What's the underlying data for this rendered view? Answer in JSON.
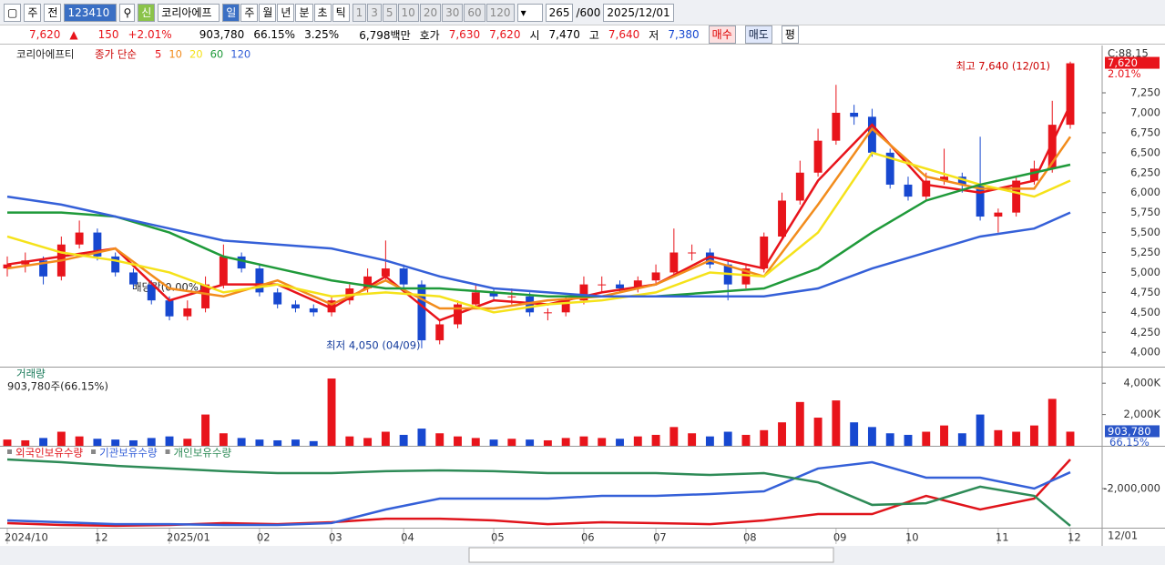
{
  "toolbar": {
    "period": "주",
    "prev": "전",
    "code": "123410",
    "new_badge": "신",
    "name": "코리아에프",
    "units": [
      "일",
      "주",
      "월",
      "년",
      "분",
      "초",
      "틱"
    ],
    "minutes": [
      "1",
      "3",
      "5",
      "10",
      "20",
      "30",
      "60",
      "120"
    ],
    "count": "265",
    "max": "/600",
    "date": "2025/12/01"
  },
  "quote": {
    "price": "7,620",
    "arrow": "▲",
    "change": "150",
    "rate": "+2.01%",
    "volume": "903,780",
    "vol_rate": "66.15%",
    "turnover": "3.25%",
    "amount": "6,798백만",
    "ask_label": "호가",
    "ask": "7,630",
    "bid": "7,620",
    "open_label": "시",
    "open": "7,470",
    "high_label": "고",
    "high": "7,640",
    "low_label": "저",
    "low": "7,380",
    "buy": "매수",
    "sell": "매도",
    "avg": "평"
  },
  "chart_data": [
    {
      "type": "candlestick",
      "title": "코리아에프티",
      "legend_prefix": "종가 단순",
      "categories": [
        "2024/10",
        null,
        null,
        null,
        null,
        "12",
        null,
        null,
        null,
        "2025/01",
        null,
        null,
        null,
        null,
        "02",
        null,
        null,
        null,
        "03",
        null,
        null,
        null,
        "04",
        null,
        null,
        null,
        null,
        "05",
        null,
        null,
        null,
        null,
        "06",
        null,
        null,
        null,
        "07",
        null,
        null,
        null,
        null,
        "08",
        null,
        null,
        null,
        null,
        "09",
        null,
        null,
        null,
        "10",
        null,
        null,
        null,
        null,
        "11",
        null,
        null,
        null,
        "12"
      ],
      "open": [
        5050,
        5100,
        5150,
        4950,
        5350,
        5500,
        5200,
        5000,
        4850,
        4650,
        4450,
        4550,
        4850,
        5200,
        5050,
        4750,
        4600,
        4550,
        4500,
        4650,
        4800,
        4950,
        5050,
        4850,
        4150,
        4350,
        4600,
        4750,
        4700,
        4700,
        4500,
        4500,
        4650,
        4850,
        4850,
        4800,
        4900,
        5000,
        5250,
        5250,
        5100,
        4850,
        5050,
        5450,
        5900,
        6250,
        6650,
        7000,
        6950,
        6500,
        6100,
        5950,
        6150,
        6200,
        6100,
        5700,
        5750,
        6150,
        6300,
        6850
      ],
      "high": [
        5200,
        5250,
        5200,
        5450,
        5650,
        5550,
        5250,
        5050,
        4900,
        4700,
        4650,
        4950,
        5350,
        5250,
        5100,
        4800,
        4650,
        4600,
        4700,
        4850,
        5050,
        5400,
        5100,
        4900,
        4400,
        4650,
        4850,
        4800,
        4800,
        4750,
        4550,
        4700,
        4950,
        4950,
        4900,
        4950,
        5100,
        5550,
        5350,
        5300,
        5150,
        5100,
        5500,
        6000,
        6400,
        6800,
        7350,
        7100,
        7050,
        6550,
        6200,
        6250,
        6550,
        6250,
        6700,
        5800,
        6200,
        6400,
        7150,
        7640
      ],
      "low": [
        4950,
        5000,
        4850,
        4900,
        5300,
        5150,
        4950,
        4800,
        4600,
        4400,
        4400,
        4500,
        4800,
        5000,
        4700,
        4550,
        4500,
        4450,
        4450,
        4600,
        4750,
        4900,
        4750,
        4050,
        4100,
        4300,
        4550,
        4650,
        4600,
        4450,
        4400,
        4450,
        4600,
        4750,
        4750,
        4750,
        4850,
        4950,
        5150,
        5050,
        4650,
        4800,
        5000,
        5400,
        5850,
        6200,
        6600,
        6850,
        6450,
        6050,
        5900,
        5900,
        6100,
        6000,
        5650,
        5500,
        5700,
        6100,
        6250,
        6800
      ],
      "close": [
        5100,
        5150,
        4950,
        5350,
        5500,
        5200,
        5000,
        4850,
        4650,
        4450,
        4550,
        4850,
        5200,
        5050,
        4750,
        4600,
        4550,
        4500,
        4650,
        4800,
        4950,
        5050,
        4850,
        4150,
        4350,
        4600,
        4750,
        4700,
        4700,
        4500,
        4500,
        4650,
        4850,
        4850,
        4800,
        4900,
        5000,
        5250,
        5250,
        5100,
        4850,
        5050,
        5450,
        5900,
        6250,
        6650,
        7000,
        6950,
        6500,
        6100,
        5950,
        6150,
        6200,
        6100,
        5700,
        5750,
        6150,
        6300,
        6850,
        7620
      ],
      "up_color": "#e8141b",
      "down_color": "#1748d0",
      "ma": {
        "x": [
          0,
          3,
          6,
          9,
          12,
          15,
          18,
          21,
          24,
          27,
          30,
          33,
          36,
          39,
          42,
          45,
          48,
          51,
          54,
          57,
          59
        ],
        "series": [
          {
            "name": "5",
            "color": "#e8141b",
            "values": [
              5100,
              5200,
              5300,
              4650,
              4850,
              4850,
              4550,
              4950,
              4400,
              4650,
              4600,
              4750,
              4850,
              5200,
              5050,
              6150,
              6850,
              6100,
              6000,
              6150,
              7100
            ]
          },
          {
            "name": "10",
            "color": "#f28c1c",
            "values": [
              5050,
              5150,
              5300,
              4800,
              4700,
              4900,
              4600,
              4900,
              4550,
              4550,
              4650,
              4700,
              4850,
              5150,
              4950,
              5850,
              6800,
              6200,
              6050,
              6050,
              6700
            ]
          },
          {
            "name": "20",
            "color": "#f5e21a",
            "values": [
              5450,
              5250,
              5150,
              5000,
              4750,
              4850,
              4700,
              4750,
              4700,
              4500,
              4600,
              4650,
              4750,
              5000,
              4950,
              5500,
              6500,
              6300,
              6100,
              5950,
              6150
            ]
          },
          {
            "name": "60",
            "color": "#1f9a3a",
            "values": [
              5750,
              5750,
              5700,
              5500,
              5200,
              5050,
              4900,
              4800,
              4800,
              4750,
              4700,
              4700,
              4700,
              4750,
              4800,
              5050,
              5500,
              5900,
              6100,
              6250,
              6350
            ]
          },
          {
            "name": "120",
            "color": "#3560d8",
            "values": [
              5950,
              5850,
              5700,
              5550,
              5400,
              5350,
              5300,
              5150,
              4950,
              4800,
              4750,
              4700,
              4700,
              4700,
              4700,
              4800,
              5050,
              5250,
              5450,
              5550,
              5750
            ]
          }
        ]
      },
      "ylim": [
        3820,
        7820
      ],
      "yticks": [
        {
          "value": 4000,
          "label": "4,000"
        },
        {
          "value": 4250,
          "label": "4,250"
        },
        {
          "value": 4500,
          "label": "4,500"
        },
        {
          "value": 4750,
          "label": "4,750"
        },
        {
          "value": 5000,
          "label": "5,000"
        },
        {
          "value": 5250,
          "label": "5,250"
        },
        {
          "value": 5500,
          "label": "5,500"
        },
        {
          "value": 5750,
          "label": "5,750"
        },
        {
          "value": 6000,
          "label": "6,000"
        },
        {
          "value": 6250,
          "label": "6,250"
        },
        {
          "value": 6500,
          "label": "6,500"
        },
        {
          "value": 6750,
          "label": "6,750"
        },
        {
          "value": 7000,
          "label": "7,000"
        },
        {
          "value": 7250,
          "label": "7,250"
        }
      ],
      "high_label": "최고 7,640 (12/01)",
      "low_label": "최저 4,050 (04/09)",
      "event_label": "배당락(0.00%)",
      "corner_label": "C:88.15",
      "last_label": "7,620",
      "change_label": "2.01%",
      "date_label": "12/01"
    },
    {
      "type": "bar",
      "title": "거래량",
      "subtitle": "903,780주(66.15%)",
      "values": [
        400,
        350,
        500,
        900,
        600,
        450,
        400,
        350,
        500,
        600,
        450,
        2000,
        800,
        500,
        400,
        350,
        400,
        300,
        4300,
        600,
        500,
        900,
        700,
        1100,
        800,
        600,
        500,
        400,
        450,
        400,
        350,
        500,
        600,
        500,
        450,
        600,
        700,
        1200,
        800,
        600,
        900,
        700,
        1000,
        1500,
        2800,
        1800,
        2900,
        1500,
        1200,
        800,
        700,
        900,
        1300,
        800,
        2000,
        1000,
        900,
        1300,
        3000,
        903.78
      ],
      "ylim": [
        0,
        5000
      ],
      "yticks": [
        {
          "value": 2000,
          "label": "2,000K"
        },
        {
          "value": 4000,
          "label": "4,000K"
        }
      ],
      "last_label": "903,780",
      "ratio_label": "66.15%"
    },
    {
      "type": "line",
      "x": [
        0,
        3,
        6,
        9,
        12,
        15,
        18,
        21,
        24,
        27,
        30,
        33,
        36,
        39,
        42,
        45,
        48,
        51,
        54,
        57,
        59
      ],
      "series": [
        {
          "name": "외국인보유수량",
          "color": "#e0141b",
          "values": [
            -3650000,
            -3740000,
            -3780000,
            -3740000,
            -3650000,
            -3700000,
            -3610000,
            -3440000,
            -3440000,
            -3520000,
            -3700000,
            -3610000,
            -3650000,
            -3700000,
            -3520000,
            -3220000,
            -3220000,
            -2350000,
            -3000000,
            -2480000,
            -610000
          ]
        },
        {
          "name": "기관보유수량",
          "color": "#3560d8",
          "values": [
            -3520000,
            -3610000,
            -3700000,
            -3700000,
            -3740000,
            -3740000,
            -3650000,
            -3000000,
            -2480000,
            -2480000,
            -2480000,
            -2350000,
            -2350000,
            -2260000,
            -2130000,
            -1040000,
            -740000,
            -1480000,
            -1480000,
            -2000000,
            -1220000
          ]
        },
        {
          "name": "개인보유수량",
          "color": "#2e8b57",
          "values": [
            -610000,
            -740000,
            -910000,
            -1040000,
            -1170000,
            -1260000,
            -1260000,
            -1170000,
            -1130000,
            -1170000,
            -1260000,
            -1260000,
            -1260000,
            -1350000,
            -1260000,
            -1700000,
            -2780000,
            -2700000,
            -1910000,
            -2350000,
            -3780000
          ]
        }
      ],
      "ylim": [
        -3870000,
        0
      ],
      "yticks": [
        {
          "value": -2000000,
          "label": "-2,000,000"
        }
      ]
    }
  ]
}
